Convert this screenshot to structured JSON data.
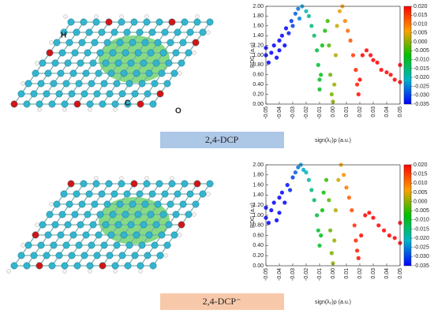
{
  "captions": [
    "2,4-DCP",
    "2,4-DCP⁻"
  ],
  "atom_labels": [
    "H",
    "C",
    "O"
  ],
  "chart_data": [
    {
      "type": "scatter",
      "xlabel": "sign(λ₂)ρ (a.u.)",
      "ylabel": "RDG (a.u)",
      "x": [
        -0.05,
        -0.05,
        -0.048,
        -0.046,
        -0.044,
        -0.042,
        -0.04,
        -0.04,
        -0.038,
        -0.036,
        -0.035,
        -0.033,
        -0.031,
        -0.03,
        -0.028,
        -0.026,
        -0.025,
        -0.023,
        -0.02,
        -0.018,
        -0.016,
        -0.014,
        -0.012,
        -0.011,
        -0.01,
        -0.01,
        -0.009,
        -0.008,
        -0.006,
        -0.004,
        -0.003,
        -0.002,
        -0.001,
        0,
        0.001,
        0.002,
        0.003,
        0.005,
        0.007,
        0.009,
        0.011,
        0.013,
        0.015,
        0.017,
        0.018,
        0.019,
        0.02,
        0.022,
        0.025,
        0.028,
        0.03,
        0.033,
        0.036,
        0.04,
        0.043,
        0.046,
        0.05,
        0.05
      ],
      "values": [
        1.0,
        1.15,
        0.85,
        1.05,
        1.2,
        0.95,
        1.3,
        1.1,
        1.4,
        1.2,
        1.55,
        1.45,
        1.7,
        1.6,
        1.85,
        1.95,
        1.75,
        2.0,
        1.9,
        1.8,
        1.6,
        1.4,
        1.1,
        0.8,
        0.5,
        0.3,
        0.6,
        1.2,
        1.5,
        1.7,
        1.2,
        0.6,
        0.2,
        0.05,
        0.4,
        1.0,
        1.6,
        1.9,
        2.0,
        1.7,
        1.5,
        1.3,
        1.0,
        0.7,
        0.4,
        0.2,
        0.5,
        1.0,
        1.1,
        1.0,
        0.9,
        0.85,
        0.7,
        0.65,
        0.6,
        0.5,
        0.45,
        0.8
      ],
      "xlim": [
        -0.05,
        0.05
      ],
      "xticks": [
        -0.05,
        -0.04,
        -0.03,
        -0.02,
        -0.01,
        {
          "value": 0,
          "label": "0.00"
        },
        0.01,
        0.02,
        0.03,
        0.04,
        0.05
      ],
      "ylim": [
        0,
        2
      ],
      "yticks": [
        {
          "value": 0,
          "label": "0.00"
        },
        {
          "value": 0.2,
          "label": "0.20"
        },
        {
          "value": 0.4,
          "label": "0.40"
        },
        {
          "value": 0.6,
          "label": "0.60"
        },
        {
          "value": 0.8,
          "label": "0.80"
        },
        {
          "value": 1,
          "label": "1.00"
        },
        {
          "value": 1.2,
          "label": "1.20"
        },
        {
          "value": 1.4,
          "label": "1.40"
        },
        {
          "value": 1.6,
          "label": "1.60"
        },
        {
          "value": 1.8,
          "label": "1.80"
        },
        {
          "value": 2,
          "label": "2.00"
        }
      ],
      "colorbar_lim": [
        -0.035,
        0.02
      ],
      "colorbar_ticks": [
        {
          "value": 0.02,
          "label": "0.020"
        },
        0.015,
        {
          "value": 0.01,
          "label": "0.010"
        },
        0.005,
        {
          "value": 0,
          "label": "0.000"
        },
        -0.005,
        {
          "value": -0.01,
          "label": "-0.010"
        },
        -0.015,
        {
          "value": -0.02,
          "label": "-0.020"
        },
        -0.025,
        {
          "value": -0.03,
          "label": "-0.030"
        },
        -0.035
      ],
      "colormap": [
        "#0000ff",
        "#00b4c8",
        "#00c000",
        "#ffa000",
        "#ff0000"
      ]
    },
    {
      "type": "scatter",
      "xlabel": "sign(λ₂)ρ (a.u.)",
      "ylabel": "RDG (a.u)",
      "x": [
        -0.05,
        -0.05,
        -0.048,
        -0.046,
        -0.044,
        -0.042,
        -0.04,
        -0.04,
        -0.038,
        -0.036,
        -0.034,
        -0.032,
        -0.03,
        -0.028,
        -0.026,
        -0.024,
        -0.022,
        -0.02,
        -0.018,
        -0.016,
        -0.014,
        -0.012,
        -0.011,
        -0.01,
        -0.009,
        -0.008,
        -0.007,
        -0.005,
        -0.003,
        -0.002,
        -0.001,
        0,
        0.001,
        0.002,
        0.004,
        0.006,
        0.008,
        0.01,
        0.012,
        0.014,
        0.016,
        0.017,
        0.018,
        0.019,
        0.021,
        0.024,
        0.027,
        0.03,
        0.034,
        0.038,
        0.042,
        0.046,
        0.05,
        0.05
      ],
      "values": [
        0.95,
        1.15,
        0.85,
        1.1,
        1.25,
        0.9,
        1.35,
        1.05,
        1.45,
        1.25,
        1.6,
        1.5,
        1.75,
        1.85,
        1.95,
        2.0,
        1.9,
        1.85,
        1.7,
        1.5,
        1.3,
        1.0,
        0.7,
        0.4,
        0.6,
        1.1,
        1.45,
        1.7,
        1.3,
        0.7,
        0.25,
        0.05,
        0.5,
        1.1,
        1.7,
        2.0,
        1.8,
        1.55,
        1.35,
        1.1,
        0.8,
        0.5,
        0.3,
        0.15,
        0.6,
        1.0,
        1.05,
        0.95,
        0.8,
        0.7,
        0.6,
        0.55,
        0.45,
        0.85
      ],
      "xlim": [
        -0.05,
        0.05
      ],
      "xticks": [
        -0.05,
        -0.04,
        -0.03,
        -0.02,
        -0.01,
        {
          "value": 0,
          "label": "0.00"
        },
        0.01,
        0.02,
        0.03,
        0.04,
        0.05
      ],
      "ylim": [
        0,
        2
      ],
      "yticks": [
        {
          "value": 0,
          "label": "0.00"
        },
        {
          "value": 0.2,
          "label": "0.20"
        },
        {
          "value": 0.4,
          "label": "0.40"
        },
        {
          "value": 0.6,
          "label": "0.60"
        },
        {
          "value": 0.8,
          "label": "0.80"
        },
        {
          "value": 1,
          "label": "1.00"
        },
        {
          "value": 1.2,
          "label": "1.20"
        },
        {
          "value": 1.4,
          "label": "1.40"
        },
        {
          "value": 1.6,
          "label": "1.60"
        },
        {
          "value": 1.8,
          "label": "1.80"
        },
        {
          "value": 2,
          "label": "2.00"
        }
      ],
      "colorbar_lim": [
        -0.035,
        0.02
      ],
      "colorbar_ticks": [
        {
          "value": 0.02,
          "label": "0.020"
        },
        0.015,
        {
          "value": 0.01,
          "label": "0.010"
        },
        0.005,
        {
          "value": 0,
          "label": "0.000"
        },
        -0.005,
        {
          "value": -0.01,
          "label": "-0.010"
        },
        -0.015,
        {
          "value": -0.02,
          "label": "-0.020"
        },
        -0.025,
        {
          "value": -0.03,
          "label": "-0.030"
        },
        -0.035
      ],
      "colormap": [
        "#0000ff",
        "#00b4c8",
        "#00c000",
        "#ffa000",
        "#ff0000"
      ]
    }
  ]
}
